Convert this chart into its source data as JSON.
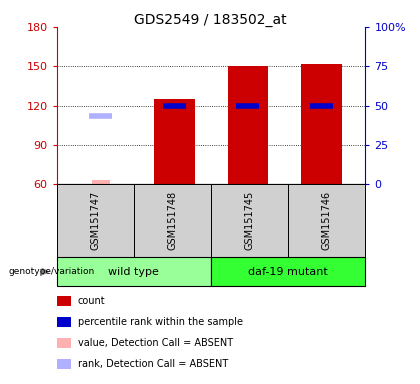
{
  "title": "GDS2549 / 183502_at",
  "samples": [
    "GSM151747",
    "GSM151748",
    "GSM151745",
    "GSM151746"
  ],
  "groups": [
    {
      "label": "wild type",
      "indices": [
        0,
        1
      ],
      "color": "#99FF99"
    },
    {
      "label": "daf-19 mutant",
      "indices": [
        2,
        3
      ],
      "color": "#33FF33"
    }
  ],
  "ylim_left": [
    60,
    180
  ],
  "ylim_right": [
    0,
    100
  ],
  "yticks_left": [
    60,
    90,
    120,
    150,
    180
  ],
  "yticks_right": [
    0,
    25,
    50,
    75,
    100
  ],
  "yticklabels_right": [
    "0",
    "25",
    "50",
    "75",
    "100%"
  ],
  "bars": [
    {
      "x": 0,
      "count": null,
      "rank": null,
      "value_absent": 63,
      "rank_absent": 112
    },
    {
      "x": 1,
      "count": 125,
      "rank": 120,
      "value_absent": null,
      "rank_absent": null
    },
    {
      "x": 2,
      "count": 150,
      "rank": 120,
      "value_absent": null,
      "rank_absent": null
    },
    {
      "x": 3,
      "count": 152,
      "rank": 120,
      "value_absent": null,
      "rank_absent": null
    }
  ],
  "bar_width": 0.55,
  "bar_color_count": "#cc0000",
  "bar_color_rank": "#0000cc",
  "bar_color_value_absent": "#ffb0b0",
  "bar_color_rank_absent": "#b0b0ff",
  "legend_items": [
    {
      "color": "#cc0000",
      "label": "count"
    },
    {
      "color": "#0000cc",
      "label": "percentile rank within the sample"
    },
    {
      "color": "#ffb0b0",
      "label": "value, Detection Call = ABSENT"
    },
    {
      "color": "#b0b0ff",
      "label": "rank, Detection Call = ABSENT"
    }
  ],
  "left_axis_color": "#cc0000",
  "right_axis_color": "#0000cc",
  "sample_box_color": "#d0d0d0",
  "title_fontsize": 10,
  "tick_fontsize": 8,
  "sample_fontsize": 7,
  "group_fontsize": 8,
  "legend_fontsize": 7
}
